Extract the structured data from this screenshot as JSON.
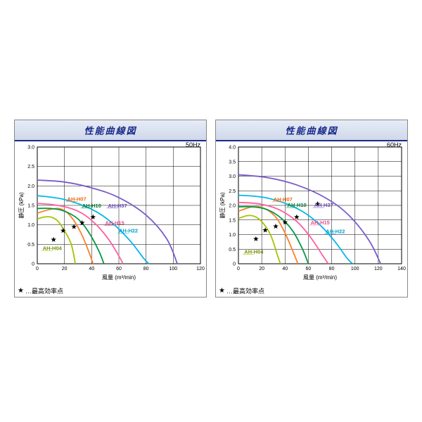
{
  "global": {
    "footnote_star": "★",
    "footnote_text": "…最高効率点",
    "background_color": "#ffffff",
    "grid_color": "#000000",
    "grid_stroke": 0.5,
    "header_gradient": [
      "#e6ecf7",
      "#cfd8ea"
    ],
    "header_underline": "#1a2a8a"
  },
  "panels": [
    {
      "id": "p50",
      "title": "性能曲線図",
      "hz_label": "50Hz",
      "x": {
        "label": "風量 (m³/min)",
        "min": 0,
        "max": 120,
        "step": 20
      },
      "y": {
        "label": "静圧 (kPa)",
        "min": 0,
        "max": 3.0,
        "step": 0.5
      },
      "series": [
        {
          "name": "AH-H04",
          "color": "#a4c400",
          "label_color": "#6f8f00",
          "label_xy": [
            4,
            0.35
          ],
          "points": [
            [
              0,
              1.15
            ],
            [
              5,
              1.2
            ],
            [
              10,
              1.2
            ],
            [
              15,
              1.1
            ],
            [
              20,
              0.85
            ],
            [
              25,
              0.5
            ],
            [
              28,
              0.0
            ]
          ],
          "star": [
            12,
            0.62
          ]
        },
        {
          "name": "AH-H07",
          "color": "#ff7f27",
          "label_color": "#e86a10",
          "label_xy": [
            22,
            1.62
          ],
          "points": [
            [
              0,
              1.3
            ],
            [
              10,
              1.4
            ],
            [
              18,
              1.4
            ],
            [
              25,
              1.2
            ],
            [
              32,
              0.8
            ],
            [
              38,
              0.3
            ],
            [
              41,
              0.0
            ]
          ],
          "star": [
            19,
            0.85
          ]
        },
        {
          "name": "AH-H10",
          "color": "#009944",
          "label_color": "#007a35",
          "label_xy": [
            33,
            1.45
          ],
          "points": [
            [
              0,
              1.42
            ],
            [
              10,
              1.42
            ],
            [
              20,
              1.35
            ],
            [
              30,
              1.15
            ],
            [
              38,
              0.8
            ],
            [
              45,
              0.35
            ],
            [
              49,
              0.0
            ]
          ],
          "star": [
            27,
            0.95
          ]
        },
        {
          "name": "AH-H15",
          "color": "#ff5fa2",
          "label_color": "#e84a90",
          "label_xy": [
            50,
            1.0
          ],
          "points": [
            [
              0,
              1.55
            ],
            [
              15,
              1.5
            ],
            [
              30,
              1.35
            ],
            [
              42,
              1.05
            ],
            [
              52,
              0.65
            ],
            [
              60,
              0.2
            ],
            [
              63,
              0.0
            ]
          ],
          "star": [
            33,
            1.05
          ]
        },
        {
          "name": "AH-H22",
          "color": "#00b7eb",
          "label_color": "#009ec9",
          "label_xy": [
            60,
            0.8
          ],
          "points": [
            [
              0,
              1.75
            ],
            [
              20,
              1.65
            ],
            [
              40,
              1.4
            ],
            [
              55,
              1.05
            ],
            [
              68,
              0.6
            ],
            [
              78,
              0.15
            ],
            [
              82,
              0.0
            ]
          ],
          "star": [
            41,
            1.2
          ]
        },
        {
          "name": "AH-H37",
          "color": "#7a5cc9",
          "label_color": "#6a4cb8",
          "label_xy": [
            52,
            1.45
          ],
          "points": [
            [
              0,
              2.15
            ],
            [
              20,
              2.1
            ],
            [
              40,
              1.95
            ],
            [
              60,
              1.7
            ],
            [
              80,
              1.25
            ],
            [
              95,
              0.65
            ],
            [
              103,
              0.0
            ]
          ],
          "star": []
        }
      ]
    },
    {
      "id": "p60",
      "title": "性能曲線図",
      "hz_label": "60Hz",
      "x": {
        "label": "風量 (m³/min)",
        "min": 0,
        "max": 140,
        "step": 20
      },
      "y": {
        "label": "静圧 (kPa)",
        "min": 0,
        "max": 4.0,
        "step": 0.5
      },
      "series": [
        {
          "name": "AH-H04",
          "color": "#a4c400",
          "label_color": "#6f8f00",
          "label_xy": [
            5,
            0.35
          ],
          "points": [
            [
              0,
              1.55
            ],
            [
              8,
              1.65
            ],
            [
              15,
              1.6
            ],
            [
              22,
              1.35
            ],
            [
              28,
              0.95
            ],
            [
              33,
              0.35
            ],
            [
              36,
              0.0
            ]
          ],
          "star": [
            15,
            0.85
          ]
        },
        {
          "name": "AH-H07",
          "color": "#ff7f27",
          "label_color": "#e86a10",
          "label_xy": [
            30,
            2.15
          ],
          "points": [
            [
              0,
              1.8
            ],
            [
              12,
              1.95
            ],
            [
              22,
              1.9
            ],
            [
              32,
              1.6
            ],
            [
              40,
              1.05
            ],
            [
              47,
              0.4
            ],
            [
              51,
              0.0
            ]
          ],
          "star": [
            23,
            1.15
          ]
        },
        {
          "name": "AH-H10",
          "color": "#009944",
          "label_color": "#007a35",
          "label_xy": [
            42,
            1.95
          ],
          "points": [
            [
              0,
              1.95
            ],
            [
              12,
              1.95
            ],
            [
              25,
              1.85
            ],
            [
              37,
              1.55
            ],
            [
              47,
              1.1
            ],
            [
              55,
              0.5
            ],
            [
              60,
              0.0
            ]
          ],
          "star": [
            32,
            1.28
          ]
        },
        {
          "name": "AH-H15",
          "color": "#ff5fa2",
          "label_color": "#e84a90",
          "label_xy": [
            62,
            1.35
          ],
          "points": [
            [
              0,
              2.1
            ],
            [
              18,
              2.05
            ],
            [
              35,
              1.85
            ],
            [
              50,
              1.45
            ],
            [
              62,
              0.9
            ],
            [
              72,
              0.3
            ],
            [
              77,
              0.0
            ]
          ],
          "star": [
            40,
            1.42
          ]
        },
        {
          "name": "AH-H22",
          "color": "#00b7eb",
          "label_color": "#009ec9",
          "label_xy": [
            75,
            1.05
          ],
          "points": [
            [
              0,
              2.35
            ],
            [
              25,
              2.25
            ],
            [
              50,
              1.9
            ],
            [
              68,
              1.4
            ],
            [
              82,
              0.8
            ],
            [
              93,
              0.2
            ],
            [
              98,
              0.0
            ]
          ],
          "star": [
            50,
            1.6
          ]
        },
        {
          "name": "AH-H37",
          "color": "#7a5cc9",
          "label_color": "#6a4cb8",
          "label_xy": [
            65,
            1.95
          ],
          "points": [
            [
              0,
              3.05
            ],
            [
              25,
              2.95
            ],
            [
              50,
              2.7
            ],
            [
              75,
              2.25
            ],
            [
              95,
              1.65
            ],
            [
              112,
              0.8
            ],
            [
              122,
              0.0
            ]
          ],
          "star": [
            68,
            2.05
          ]
        }
      ]
    }
  ]
}
